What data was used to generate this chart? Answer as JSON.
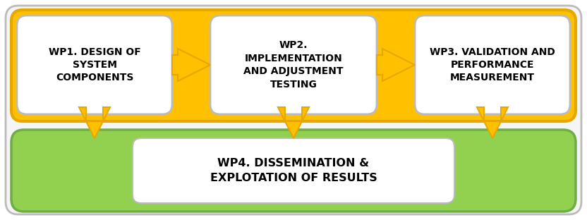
{
  "fig_width": 8.32,
  "fig_height": 3.12,
  "dpi": 100,
  "bg_color": "#ffffff",
  "orange_fill": "#FFC000",
  "orange_border": "#E6A800",
  "green_fill": "#92D050",
  "green_fill_light": "#C6EFCE",
  "green_border": "#70AD47",
  "white_fill": "#FFFFFF",
  "gray_border": "#BBBBBB",
  "outer_border": "#BBBBBB",
  "outer_fill": "#F5F5F5",
  "wp1_text": "WP1. DESIGN OF\nSYSTEM\nCOMPONENTS",
  "wp2_text": "WP2.\nIMPLEMENTATION\nAND ADJUSTMENT\nTESTING",
  "wp3_text": "WP3. VALIDATION AND\nPERFORMANCE\nMEASUREMENT",
  "wp4_text": "WP4. DISSEMINATION &\nEXPLOTATION OF RESULTS",
  "font_size_wp": 10.0,
  "font_size_wp4": 11.5,
  "font_weight": "bold",
  "font_family": "DejaVu Sans"
}
